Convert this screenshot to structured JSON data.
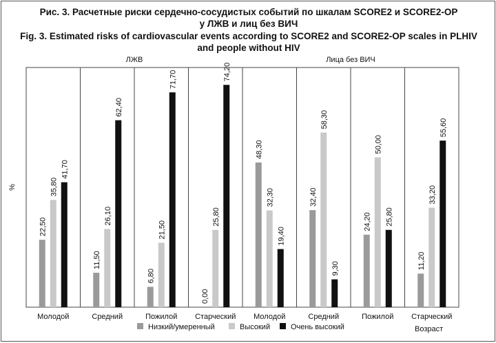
{
  "title_ru": "Рис. 3. Расчетные риски сердечно-сосудистых событий по шкалам SCORE2 и SCORE2-OP",
  "title_ru_2": "у ЛЖВ и лиц без ВИЧ",
  "title_en": "Fig. 3. Estimated risks of cardiovascular events according to SCORE2 and SCORE2-OP scales in PLHIV",
  "title_en_2": "and people without HIV",
  "colors": {
    "low": "#9a9a9a",
    "high": "#c9c9c9",
    "veryhigh": "#111111"
  },
  "chart_data": {
    "type": "bar",
    "ylabel": "%",
    "xlabel": "Возраст",
    "ylim": [
      0,
      80
    ],
    "groups": [
      {
        "label": "ЛЖВ",
        "categories": [
          "Молодой",
          "Средний",
          "Пожилой",
          "Старческий"
        ]
      },
      {
        "label": "Лица без ВИЧ",
        "categories": [
          "Молодой",
          "Средний",
          "Пожилой",
          "Старческий"
        ]
      }
    ],
    "categories": [
      "Молодой",
      "Средний",
      "Пожилой",
      "Старческий",
      "Молодой",
      "Средний",
      "Пожилой",
      "Старческий"
    ],
    "series": [
      {
        "name": "Низкий/умеренный",
        "values": [
          22.5,
          11.5,
          6.8,
          0.0,
          48.3,
          32.4,
          24.2,
          11.2
        ],
        "labels": [
          "22,50",
          "11,50",
          "6,80",
          "0,00",
          "48,30",
          "32,40",
          "24,20",
          "11,20"
        ]
      },
      {
        "name": "Высокий",
        "values": [
          35.8,
          26.1,
          21.5,
          25.8,
          32.3,
          58.3,
          50.0,
          33.2
        ],
        "labels": [
          "35,80",
          "26,10",
          "21,50",
          "25,80",
          "32,30",
          "58,30",
          "50,00",
          "33,20"
        ]
      },
      {
        "name": "Очень высокий",
        "values": [
          41.7,
          62.4,
          71.7,
          74.2,
          19.4,
          9.3,
          25.8,
          55.6
        ],
        "labels": [
          "41,70",
          "62,40",
          "71,70",
          "74,20",
          "19,40",
          "9,30",
          "25,80",
          "55,60"
        ]
      }
    ],
    "legend_position": "bottom"
  }
}
